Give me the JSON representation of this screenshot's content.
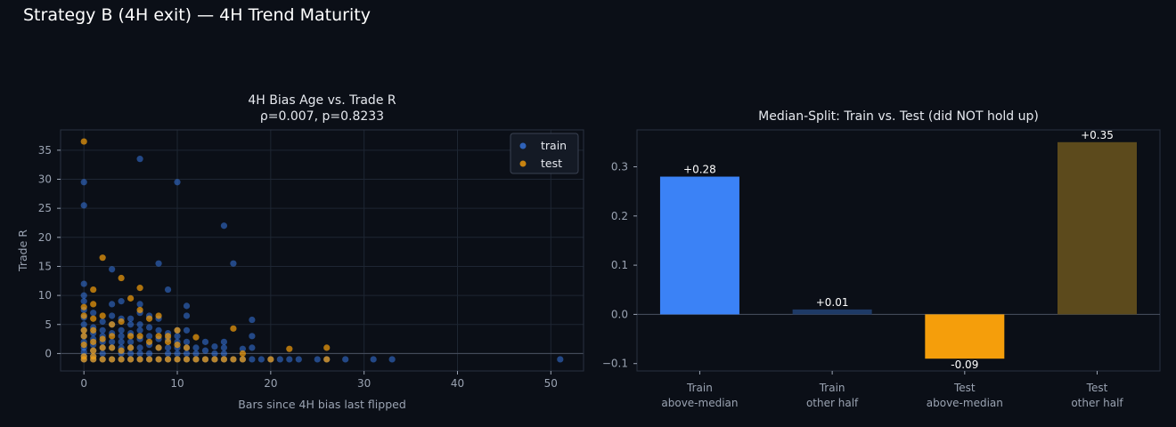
{
  "suptitle": "Strategy B (4H exit) — 4H Trend Maturity",
  "colors": {
    "background": "#0b0f17",
    "train": "#3b82f6",
    "test": "#f59e0b",
    "bars": [
      "#3b82f6",
      "#1e3a66",
      "#f59e0b",
      "#5c4a1c"
    ]
  },
  "chart_data": [
    {
      "type": "scatter",
      "title": "4H Bias Age vs. Trade R",
      "subtitle": "ρ=0.007, p=0.8233",
      "xlabel": "Bars since 4H bias last flipped",
      "ylabel": "Trade R",
      "xlim": [
        -2.5,
        53.5
      ],
      "ylim": [
        -3,
        38.5
      ],
      "xticks": [
        0,
        10,
        20,
        30,
        40,
        50
      ],
      "yticks": [
        0,
        5,
        10,
        15,
        20,
        25,
        30,
        35
      ],
      "grid": true,
      "legend_position": "top-right",
      "series": [
        {
          "name": "train",
          "points": [
            [
              0,
              29.5
            ],
            [
              0,
              25.5
            ],
            [
              0,
              12
            ],
            [
              0,
              10
            ],
            [
              0,
              9
            ],
            [
              0,
              7.5
            ],
            [
              0,
              6.2
            ],
            [
              0,
              5
            ],
            [
              0,
              4
            ],
            [
              0,
              3
            ],
            [
              0,
              2
            ],
            [
              0,
              1
            ],
            [
              0,
              0.3
            ],
            [
              0,
              -0.5
            ],
            [
              0,
              -1
            ],
            [
              1,
              7
            ],
            [
              1,
              4.5
            ],
            [
              1,
              3.5
            ],
            [
              1,
              2.5
            ],
            [
              1,
              1.5
            ],
            [
              1,
              0.5
            ],
            [
              1,
              -0.5
            ],
            [
              1,
              -1
            ],
            [
              2,
              5.5
            ],
            [
              2,
              4
            ],
            [
              2,
              3
            ],
            [
              2,
              2
            ],
            [
              2,
              1
            ],
            [
              2,
              0
            ],
            [
              2,
              -1
            ],
            [
              3,
              14.5
            ],
            [
              3,
              8.5
            ],
            [
              3,
              6.5
            ],
            [
              3,
              5
            ],
            [
              3,
              3.5
            ],
            [
              3,
              2
            ],
            [
              3,
              1
            ],
            [
              3,
              -1
            ],
            [
              4,
              9
            ],
            [
              4,
              6
            ],
            [
              4,
              4
            ],
            [
              4,
              3
            ],
            [
              4,
              2
            ],
            [
              4,
              1
            ],
            [
              4,
              0
            ],
            [
              4,
              -1
            ],
            [
              5,
              6
            ],
            [
              5,
              5
            ],
            [
              5,
              3.5
            ],
            [
              5,
              2
            ],
            [
              5,
              1
            ],
            [
              5,
              0
            ],
            [
              5,
              -1
            ],
            [
              6,
              33.5
            ],
            [
              6,
              8.5
            ],
            [
              6,
              7
            ],
            [
              6,
              5
            ],
            [
              6,
              4
            ],
            [
              6,
              2.5
            ],
            [
              6,
              1
            ],
            [
              6,
              0
            ],
            [
              6,
              -1
            ],
            [
              7,
              6.5
            ],
            [
              7,
              4.5
            ],
            [
              7,
              3
            ],
            [
              7,
              1.5
            ],
            [
              7,
              0
            ],
            [
              7,
              -1
            ],
            [
              8,
              15.5
            ],
            [
              8,
              6
            ],
            [
              8,
              4
            ],
            [
              8,
              2.5
            ],
            [
              8,
              1
            ],
            [
              8,
              -1
            ],
            [
              9,
              11
            ],
            [
              9,
              3.5
            ],
            [
              9,
              2.5
            ],
            [
              9,
              1
            ],
            [
              9,
              0
            ],
            [
              9,
              -1
            ],
            [
              10,
              29.5
            ],
            [
              10,
              4
            ],
            [
              10,
              3
            ],
            [
              10,
              2
            ],
            [
              10,
              1
            ],
            [
              10,
              0
            ],
            [
              10,
              -1
            ],
            [
              11,
              8.2
            ],
            [
              11,
              6.5
            ],
            [
              11,
              4
            ],
            [
              11,
              2
            ],
            [
              11,
              1
            ],
            [
              11,
              0
            ],
            [
              11,
              -1
            ],
            [
              12,
              1
            ],
            [
              12,
              0
            ],
            [
              12,
              -1
            ],
            [
              13,
              2
            ],
            [
              13,
              0.5
            ],
            [
              13,
              -1
            ],
            [
              14,
              1.2
            ],
            [
              14,
              0
            ],
            [
              14,
              -1
            ],
            [
              15,
              22
            ],
            [
              15,
              2
            ],
            [
              15,
              1
            ],
            [
              15,
              0
            ],
            [
              15,
              -1
            ],
            [
              16,
              15.5
            ],
            [
              16,
              -1
            ],
            [
              17,
              0.8
            ],
            [
              17,
              -1
            ],
            [
              18,
              5.8
            ],
            [
              18,
              3
            ],
            [
              18,
              1
            ],
            [
              18,
              -1
            ],
            [
              19,
              -1
            ],
            [
              20,
              -1
            ],
            [
              21,
              -1
            ],
            [
              22,
              -1
            ],
            [
              23,
              -1
            ],
            [
              25,
              -1
            ],
            [
              26,
              -1
            ],
            [
              28,
              -1
            ],
            [
              31,
              -1
            ],
            [
              33,
              -1
            ],
            [
              51,
              -1
            ]
          ]
        },
        {
          "name": "test",
          "points": [
            [
              0,
              36.5
            ],
            [
              0,
              8
            ],
            [
              0,
              6.5
            ],
            [
              0,
              4
            ],
            [
              0,
              3
            ],
            [
              0,
              1.5
            ],
            [
              0,
              -0.5
            ],
            [
              0,
              -1
            ],
            [
              1,
              11
            ],
            [
              1,
              8.5
            ],
            [
              1,
              6
            ],
            [
              1,
              4
            ],
            [
              1,
              2
            ],
            [
              1,
              0.5
            ],
            [
              1,
              -0.5
            ],
            [
              1,
              -1
            ],
            [
              2,
              16.5
            ],
            [
              2,
              6.5
            ],
            [
              2,
              2.5
            ],
            [
              2,
              1
            ],
            [
              2,
              -1
            ],
            [
              3,
              5
            ],
            [
              3,
              3
            ],
            [
              3,
              1
            ],
            [
              3,
              -1
            ],
            [
              4,
              13
            ],
            [
              4,
              5.5
            ],
            [
              4,
              0.5
            ],
            [
              4,
              -1
            ],
            [
              5,
              9.5
            ],
            [
              5,
              3
            ],
            [
              5,
              1
            ],
            [
              5,
              -1
            ],
            [
              6,
              11.3
            ],
            [
              6,
              7.5
            ],
            [
              6,
              3
            ],
            [
              6,
              -1
            ],
            [
              7,
              6
            ],
            [
              7,
              2
            ],
            [
              7,
              -1
            ],
            [
              8,
              6.5
            ],
            [
              8,
              3
            ],
            [
              8,
              1
            ],
            [
              8,
              -1
            ],
            [
              9,
              3
            ],
            [
              9,
              2
            ],
            [
              9,
              -1
            ],
            [
              10,
              4
            ],
            [
              10,
              1.5
            ],
            [
              10,
              -1
            ],
            [
              11,
              1
            ],
            [
              11,
              -1
            ],
            [
              12,
              2.8
            ],
            [
              12,
              -1
            ],
            [
              13,
              -1
            ],
            [
              14,
              -1
            ],
            [
              15,
              -1
            ],
            [
              16,
              4.3
            ],
            [
              16,
              -1
            ],
            [
              17,
              0
            ],
            [
              17,
              -1
            ],
            [
              20,
              -1
            ],
            [
              22,
              0.8
            ],
            [
              26,
              1
            ],
            [
              26,
              -1
            ]
          ]
        }
      ]
    },
    {
      "type": "bar",
      "title": "Median-Split: Train vs. Test (did NOT hold up)",
      "categories": [
        [
          "Train",
          "above-median"
        ],
        [
          "Train",
          "other half"
        ],
        [
          "Test",
          "above-median"
        ],
        [
          "Test",
          "other half"
        ]
      ],
      "values": [
        0.28,
        0.01,
        -0.09,
        0.35
      ],
      "labels": [
        "+0.28",
        "+0.01",
        "-0.09",
        "+0.35"
      ],
      "ylim": [
        -0.115,
        0.375
      ],
      "yticks": [
        -0.1,
        0.0,
        0.1,
        0.2,
        0.3
      ],
      "yticklabels": [
        "−0.1",
        "0.0",
        "0.1",
        "0.2",
        "0.3"
      ],
      "grid": false
    }
  ]
}
